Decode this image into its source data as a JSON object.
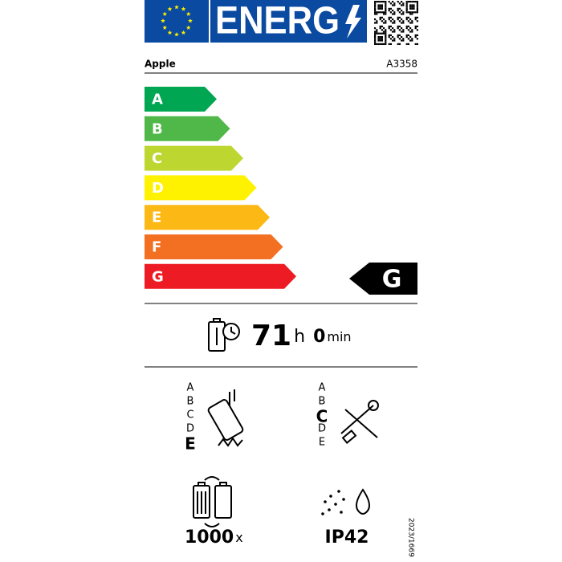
{
  "header": {
    "title": "ENERG"
  },
  "supplier": "Apple",
  "model": "A3358",
  "classes": [
    "A",
    "B",
    "C",
    "D",
    "E",
    "F",
    "G"
  ],
  "class_colors": [
    "#00a651",
    "#50b848",
    "#bed630",
    "#fff200",
    "#fcb814",
    "#f36f21",
    "#ed1c24"
  ],
  "rating": "G",
  "battery_endurance": {
    "hours": "71",
    "hours_unit": "h",
    "minutes": "0",
    "minutes_unit": "min"
  },
  "drop_resistance": {
    "scale": [
      "A",
      "B",
      "C",
      "D",
      "E"
    ],
    "highlight": "E"
  },
  "repairability": {
    "scale": [
      "A",
      "B",
      "C",
      "D",
      "E"
    ],
    "highlight": "C"
  },
  "battery_cycles": {
    "count": "1000",
    "unit": "x"
  },
  "ingress_protection": "IP42",
  "regulation": "2023/1669"
}
